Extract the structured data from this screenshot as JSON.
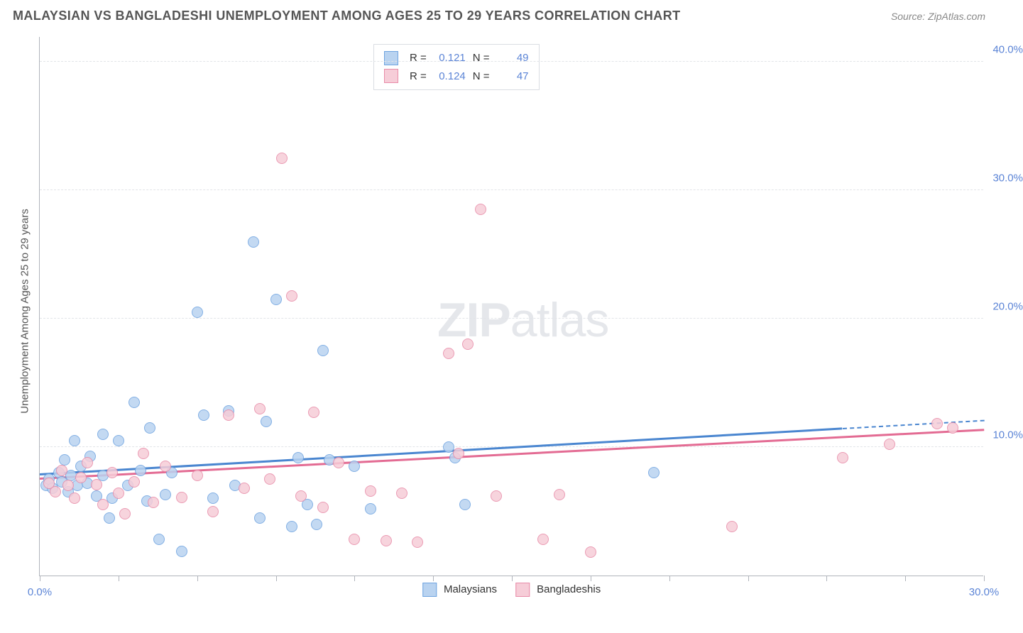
{
  "title": "MALAYSIAN VS BANGLADESHI UNEMPLOYMENT AMONG AGES 25 TO 29 YEARS CORRELATION CHART",
  "source_label": "Source: ZipAtlas.com",
  "yaxis_label": "Unemployment Among Ages 25 to 29 years",
  "watermark": {
    "a": "ZIP",
    "b": "atlas"
  },
  "chart": {
    "type": "scatter",
    "xlim": [
      0,
      30
    ],
    "ylim": [
      0,
      42
    ],
    "x_ticks": [
      0,
      2.5,
      5,
      7.5,
      10,
      12.5,
      15,
      17.5,
      20,
      22.5,
      25,
      27.5,
      30
    ],
    "x_tick_labels": {
      "0": "0.0%",
      "30": "30.0%"
    },
    "y_gridlines": [
      10,
      20,
      30,
      40
    ],
    "y_tick_labels": {
      "10": "10.0%",
      "20": "20.0%",
      "30": "30.0%",
      "40": "40.0%"
    },
    "background_color": "#ffffff",
    "grid_color": "#e2e4e8",
    "axis_color": "#b0b4bb",
    "tick_label_color": "#5b84d6",
    "marker_radius": 8,
    "series": [
      {
        "name": "Malaysians",
        "fill": "#b9d3f0",
        "stroke": "#6ea3e0",
        "r_label": "R =",
        "r_value": "0.121",
        "n_label": "N =",
        "n_value": "49",
        "trend": {
          "x1": 0,
          "y1": 7.8,
          "x2": 30,
          "y2": 12.0,
          "dash_from_x": 25.5,
          "color": "#4a86d0"
        },
        "points": [
          [
            0.2,
            7.0
          ],
          [
            0.3,
            7.5
          ],
          [
            0.4,
            6.8
          ],
          [
            0.6,
            8.0
          ],
          [
            0.7,
            7.3
          ],
          [
            0.8,
            9.0
          ],
          [
            0.9,
            6.5
          ],
          [
            1.0,
            7.8
          ],
          [
            1.1,
            10.5
          ],
          [
            1.2,
            7.0
          ],
          [
            1.3,
            8.5
          ],
          [
            1.5,
            7.2
          ],
          [
            1.6,
            9.3
          ],
          [
            1.8,
            6.2
          ],
          [
            2.0,
            11.0
          ],
          [
            2.0,
            7.8
          ],
          [
            2.2,
            4.5
          ],
          [
            2.3,
            6.0
          ],
          [
            2.5,
            10.5
          ],
          [
            2.8,
            7.0
          ],
          [
            3.0,
            13.5
          ],
          [
            3.2,
            8.2
          ],
          [
            3.4,
            5.8
          ],
          [
            3.5,
            11.5
          ],
          [
            3.8,
            2.8
          ],
          [
            4.0,
            6.3
          ],
          [
            4.2,
            8.0
          ],
          [
            4.5,
            1.9
          ],
          [
            5.0,
            20.5
          ],
          [
            5.2,
            12.5
          ],
          [
            5.5,
            6.0
          ],
          [
            6.0,
            12.8
          ],
          [
            6.2,
            7.0
          ],
          [
            6.8,
            26.0
          ],
          [
            7.0,
            4.5
          ],
          [
            7.2,
            12.0
          ],
          [
            7.5,
            21.5
          ],
          [
            8.0,
            3.8
          ],
          [
            8.2,
            9.2
          ],
          [
            8.5,
            5.5
          ],
          [
            8.8,
            4.0
          ],
          [
            9.0,
            17.5
          ],
          [
            9.2,
            9.0
          ],
          [
            10.0,
            8.5
          ],
          [
            10.5,
            5.2
          ],
          [
            13.0,
            10.0
          ],
          [
            13.2,
            9.2
          ],
          [
            13.5,
            5.5
          ],
          [
            19.5,
            8.0
          ]
        ]
      },
      {
        "name": "Bangladeshis",
        "fill": "#f6cdd8",
        "stroke": "#e88ba8",
        "r_label": "R =",
        "r_value": "0.124",
        "n_label": "N =",
        "n_value": "47",
        "trend": {
          "x1": 0,
          "y1": 7.5,
          "x2": 30,
          "y2": 11.3,
          "dash_from_x": null,
          "color": "#e36b93"
        },
        "points": [
          [
            0.3,
            7.2
          ],
          [
            0.5,
            6.5
          ],
          [
            0.7,
            8.2
          ],
          [
            0.9,
            7.0
          ],
          [
            1.1,
            6.0
          ],
          [
            1.3,
            7.6
          ],
          [
            1.5,
            8.8
          ],
          [
            1.8,
            7.1
          ],
          [
            2.0,
            5.5
          ],
          [
            2.3,
            8.0
          ],
          [
            2.5,
            6.4
          ],
          [
            2.7,
            4.8
          ],
          [
            3.0,
            7.3
          ],
          [
            3.3,
            9.5
          ],
          [
            3.6,
            5.7
          ],
          [
            4.0,
            8.5
          ],
          [
            4.5,
            6.1
          ],
          [
            5.0,
            7.8
          ],
          [
            5.5,
            5.0
          ],
          [
            6.0,
            12.5
          ],
          [
            6.5,
            6.8
          ],
          [
            7.0,
            13.0
          ],
          [
            7.3,
            7.5
          ],
          [
            7.7,
            32.5
          ],
          [
            8.0,
            21.8
          ],
          [
            8.3,
            6.2
          ],
          [
            8.7,
            12.7
          ],
          [
            9.0,
            5.3
          ],
          [
            9.5,
            8.8
          ],
          [
            10.0,
            2.8
          ],
          [
            10.5,
            6.6
          ],
          [
            11.0,
            2.7
          ],
          [
            11.5,
            6.4
          ],
          [
            12.0,
            2.6
          ],
          [
            13.0,
            17.3
          ],
          [
            13.3,
            9.5
          ],
          [
            13.6,
            18.0
          ],
          [
            14.0,
            28.5
          ],
          [
            14.5,
            6.2
          ],
          [
            16.0,
            2.8
          ],
          [
            16.5,
            6.3
          ],
          [
            17.5,
            1.8
          ],
          [
            22.0,
            3.8
          ],
          [
            25.5,
            9.2
          ],
          [
            27.0,
            10.2
          ],
          [
            28.5,
            11.8
          ],
          [
            29.0,
            11.5
          ]
        ]
      }
    ]
  }
}
